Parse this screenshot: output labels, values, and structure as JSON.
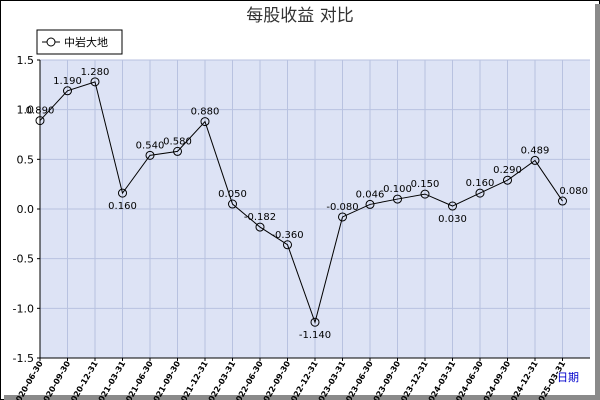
{
  "chart_data": {
    "type": "line",
    "title": "每股收益  对比",
    "xlabel": "日期",
    "ylabel": "",
    "ylim": [
      -1.5,
      1.5
    ],
    "yticks": [
      -1.5,
      -1.0,
      -0.5,
      0.0,
      0.5,
      1.0,
      1.5
    ],
    "ytick_labels": [
      "-1.5",
      "-1.0",
      "-0.5",
      "0.0",
      "0.5",
      "1.0",
      "1.5"
    ],
    "grid": true,
    "legend_position": "top-left",
    "categories": [
      "2020-06-30",
      "2020-09-30",
      "2020-12-31",
      "2021-03-31",
      "2021-06-30",
      "2021-09-30",
      "2021-12-31",
      "2022-03-31",
      "2022-06-30",
      "2022-09-30",
      "2022-12-31",
      "2023-03-31",
      "2023-06-30",
      "2023-09-30",
      "2023-12-31",
      "2024-03-31",
      "2024-06-30",
      "2024-09-30",
      "2024-12-31",
      "2025-03-31"
    ],
    "series": [
      {
        "name": "中岩大地",
        "color": "#000000",
        "values": [
          0.89,
          1.19,
          1.28,
          0.16,
          0.54,
          0.58,
          0.88,
          0.05,
          -0.182,
          -0.36,
          -1.14,
          -0.08,
          0.046,
          0.1,
          0.15,
          0.03,
          0.16,
          0.29,
          0.489,
          0.08
        ],
        "labels": [
          "0.890",
          "1.190",
          "1.280",
          "0.160",
          "0.540",
          "0.580",
          "0.880",
          "0.050",
          "-0.182",
          "-0.360",
          "-1.140",
          "-0.080",
          "0.046",
          "0.100",
          "0.150",
          "0.030",
          "0.160",
          "0.290",
          "0.489",
          "0.080"
        ]
      }
    ],
    "colors": {
      "plot_background": "#dde3f5",
      "grid": "#b8c2e0",
      "line": "#000000",
      "x_unit_label": "#0000cc"
    }
  }
}
